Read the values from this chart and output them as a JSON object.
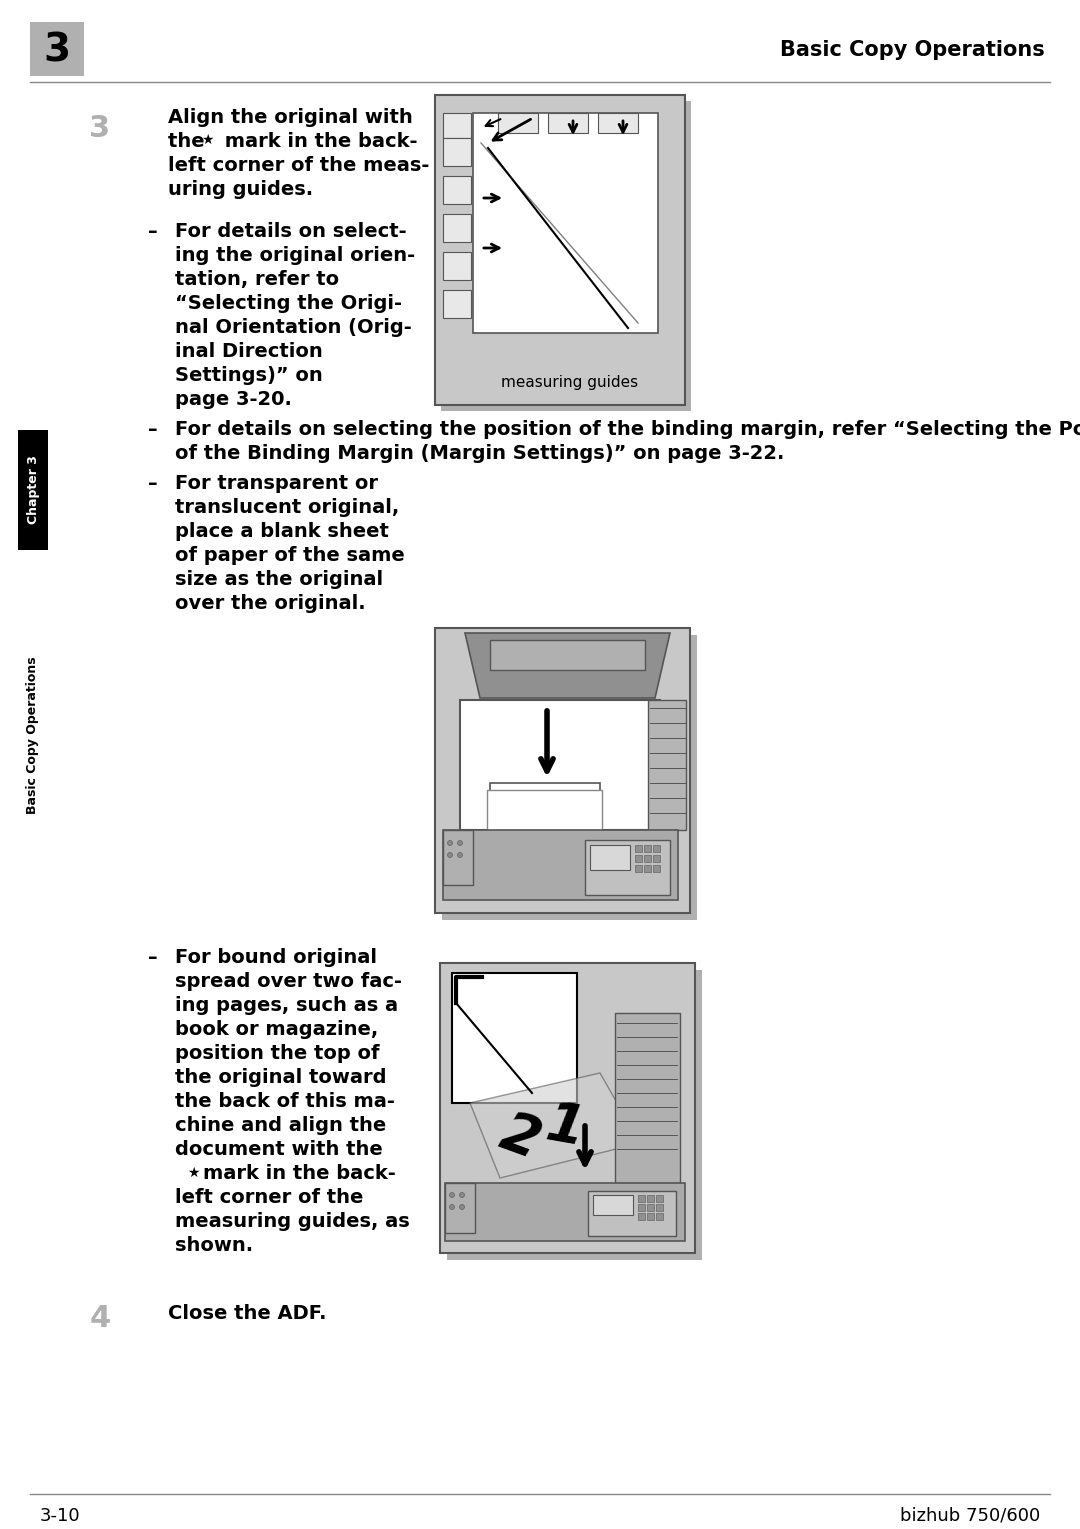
{
  "page_width": 10.8,
  "page_height": 15.29,
  "dpi": 100,
  "bg_color": "#ffffff",
  "header_line_color": "#888888",
  "header_chapter_box_color": "#b0b0b0",
  "header_chapter_number": "3",
  "header_title": "Basic Copy Operations",
  "footer_left": "3-10",
  "footer_right": "bizhub 750/600",
  "sidebar_black_box_color": "#000000",
  "sidebar_text1": "Chapter 3",
  "sidebar_text2": "Basic Copy Operations",
  "step3_number": "3",
  "step4_number": "4",
  "step4_text": "Close the ADF.",
  "step3_text_line1": "Align the original with",
  "step3_text_line2a": "the ",
  "step3_text_line2b": " mark in the back-",
  "step3_text_line3": "left corner of the meas-",
  "step3_text_line4": "uring guides.",
  "bullet1_lines": [
    "For details on select-",
    "ing the original orien-",
    "tation, refer to",
    "“Selecting the Origi-",
    "nal Orientation (Orig-",
    "inal Direction",
    "Settings)” on",
    "page 3-20."
  ],
  "bullet2_line1": "For details on selecting the position of the binding margin, refer “Selecting the Position",
  "bullet2_line2": "of the Binding Margin (Margin Settings)” on page 3-22.",
  "bullet3_lines": [
    "For transparent or",
    "translucent original,",
    "place a blank sheet",
    "of paper of the same",
    "size as the original",
    "over the original."
  ],
  "bullet4_lines": [
    "For bound original",
    "spread over two fac-",
    "ing pages, such as a",
    "book or magazine,",
    "position the top of",
    "the original toward",
    "the back of this ma-",
    "chine and align the",
    "document with the",
    " mark in the back-",
    "left corner of the",
    "measuring guides, as",
    "shown."
  ],
  "img1_label": "measuring guides",
  "gray_box1_color": "#c8c8c8",
  "gray_box2_color": "#c0c0c0",
  "white": "#ffffff",
  "black": "#000000",
  "dark_gray": "#555555",
  "medium_gray": "#999999",
  "light_gray": "#e0e0e0",
  "lighter_gray": "#e8e8e8",
  "shadow_color": "#b0b0b0"
}
